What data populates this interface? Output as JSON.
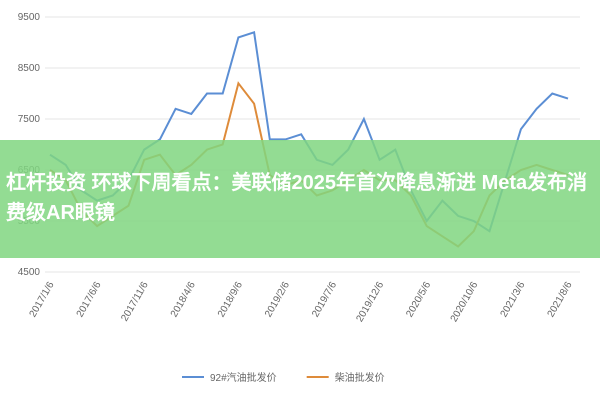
{
  "chart_data": {
    "type": "line",
    "categories": [
      "2017/1/6",
      null,
      null,
      "2017/6/6",
      null,
      null,
      "2017/11/6",
      null,
      null,
      "2018/4/6",
      null,
      null,
      "2018/9/6",
      null,
      null,
      "2019/2/6",
      null,
      null,
      "2019/7/6",
      null,
      null,
      "2019/12/6",
      null,
      null,
      "2020/5/6",
      null,
      null,
      "2020/10/6",
      null,
      null,
      "2021/3/6",
      null,
      null,
      "2021/8/6"
    ],
    "series": [
      {
        "name": "92#汽油批发价",
        "color": "#5b8ed4",
        "values": [
          6800,
          6600,
          6100,
          5900,
          6000,
          6300,
          6900,
          7100,
          7700,
          7600,
          8000,
          8000,
          9100,
          9200,
          7100,
          7100,
          7200,
          6700,
          6600,
          6900,
          7500,
          6700,
          6900,
          6100,
          5500,
          5900,
          5600,
          5500,
          5300,
          6300,
          7300,
          7700,
          8000,
          7900
        ]
      },
      {
        "name": "柴油批发价",
        "color": "#de8b3a",
        "values": [
          6500,
          6300,
          5700,
          5400,
          5600,
          5800,
          6700,
          6800,
          6400,
          6600,
          6900,
          7000,
          8200,
          7800,
          6400,
          6200,
          6300,
          6000,
          6100,
          6300,
          6500,
          6300,
          6300,
          6000,
          5400,
          5200,
          5000,
          5300,
          6000,
          6300,
          6500,
          6600,
          6500,
          6400
        ]
      }
    ],
    "ylim": [
      4500,
      9500
    ],
    "yticks": [
      4500,
      5500,
      6500,
      7500,
      8500,
      9500
    ],
    "grid": true
  },
  "banner": {
    "text": "杠杆投资 环球下周看点：美联储2025年首次降息渐进 Meta发布消费级AR眼镜"
  }
}
